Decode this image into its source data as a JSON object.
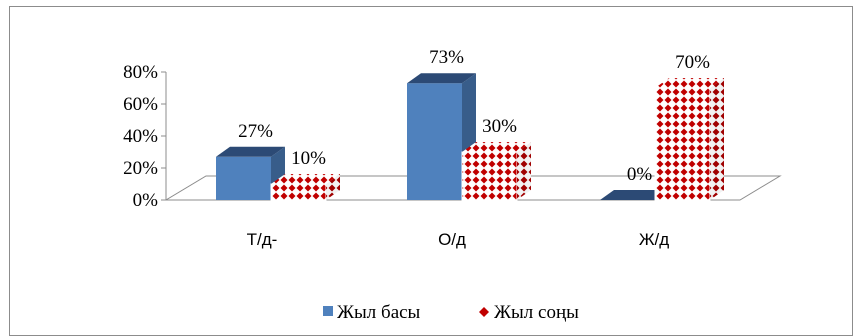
{
  "chart_data": {
    "type": "bar",
    "categories": [
      "Т/д-",
      "О/д",
      "Ж/д"
    ],
    "series": [
      {
        "name": "Жыл басы",
        "values": [
          27,
          73,
          0
        ],
        "labels": [
          "27%",
          "73%",
          "0%"
        ],
        "color": "#4f81bd"
      },
      {
        "name": "Жыл соңы",
        "values": [
          10,
          30,
          70
        ],
        "labels": [
          "10%",
          "30%",
          "70%"
        ],
        "color": "#c00000"
      }
    ],
    "y_ticks": [
      "0%",
      "20%",
      "40%",
      "60%",
      "80%"
    ],
    "ylim": [
      0,
      80
    ],
    "legend_position": "bottom",
    "grid": false,
    "three_d": true
  }
}
